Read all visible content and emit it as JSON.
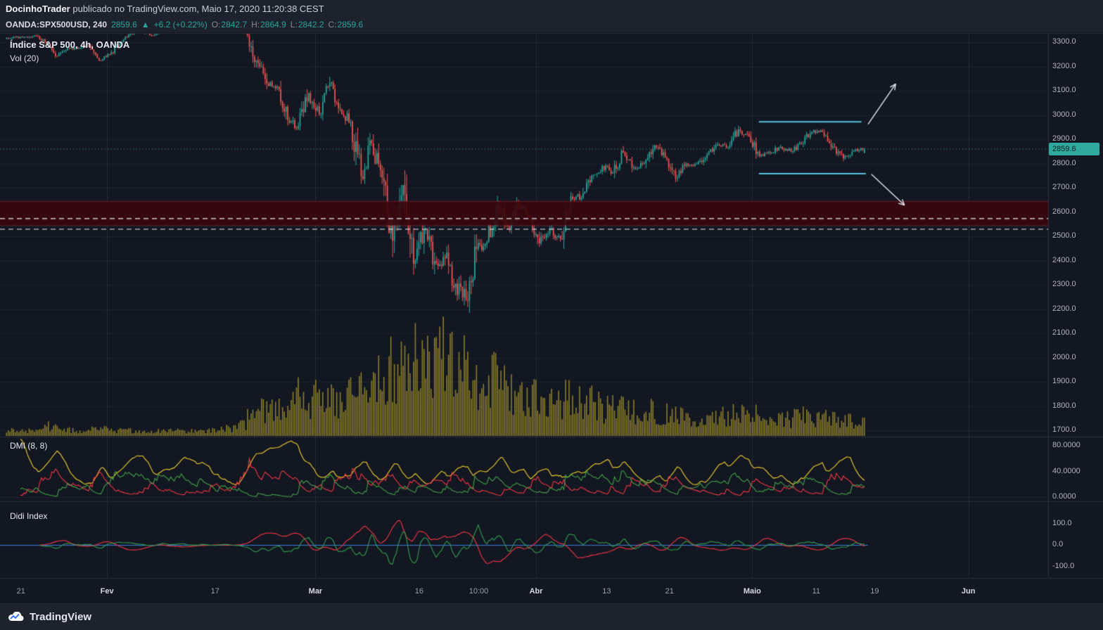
{
  "attribution": {
    "author": "DocinhoTrader",
    "text": " publicado no TradingView.com, Maio 17, 2020 11:20:38 CEST"
  },
  "header": {
    "symbol": "OANDA:SPX500USD, 240",
    "last": "2859.6",
    "direction": "▲",
    "change": "+6.2 (+0.22%)",
    "ohlc": [
      {
        "label": "O:",
        "value": "2842.7"
      },
      {
        "label": "H:",
        "value": "2864.9"
      },
      {
        "label": "L:",
        "value": "2842.2"
      },
      {
        "label": "C:",
        "value": "2859.6"
      }
    ]
  },
  "legends": {
    "main": "Índice S&P 500, 4h, OANDA",
    "volume": "Vol (20)",
    "dmi": "DMI (8, 8)",
    "didi": "Didi Index"
  },
  "footer": {
    "brand": "TradingView"
  },
  "price_axis": {
    "ticks": [
      "3300.0",
      "3200.0",
      "3100.0",
      "3000.0",
      "2900.0",
      "2800.0",
      "2700.0",
      "2600.0",
      "2500.0",
      "2400.0",
      "2300.0",
      "2200.0",
      "2100.0",
      "2000.0",
      "1900.0",
      "1800.0",
      "1700.0"
    ],
    "last_price_label": "2859.6"
  },
  "dmi_axis": [
    "80.0000",
    "40.0000",
    "0.0000"
  ],
  "didi_axis": [
    "100.0",
    "0.0",
    "-100.0"
  ],
  "time_axis": [
    {
      "label": "21",
      "x": 0.019,
      "strong": false
    },
    {
      "label": "Fev",
      "x": 0.097,
      "strong": true
    },
    {
      "label": "17",
      "x": 0.195,
      "strong": false
    },
    {
      "label": "Mar",
      "x": 0.286,
      "strong": true
    },
    {
      "label": "16",
      "x": 0.38,
      "strong": false
    },
    {
      "label": "10:00",
      "x": 0.434,
      "strong": false
    },
    {
      "label": "Abr",
      "x": 0.486,
      "strong": true
    },
    {
      "label": "13",
      "x": 0.55,
      "strong": false
    },
    {
      "label": "21",
      "x": 0.607,
      "strong": false
    },
    {
      "label": "Maio",
      "x": 0.682,
      "strong": true
    },
    {
      "label": "11",
      "x": 0.74,
      "strong": false
    },
    {
      "label": "19",
      "x": 0.793,
      "strong": false
    },
    {
      "label": "Jun",
      "x": 0.878,
      "strong": true
    }
  ],
  "chart_data": {
    "type": "candlestick",
    "title": "Índice S&P 500, 4h, OANDA",
    "symbol": "OANDA:SPX500USD",
    "interval_minutes": 240,
    "ylim": [
      1677,
      3335
    ],
    "grid": true,
    "price_ticks": [
      3300,
      3200,
      3100,
      3000,
      2900,
      2800,
      2700,
      2600,
      2500,
      2400,
      2300,
      2200,
      2100,
      2000,
      1900,
      1800,
      1700
    ],
    "x_tick_labels": [
      "21",
      "Fev",
      "17",
      "Mar",
      "16",
      "10:00",
      "Abr",
      "13",
      "21",
      "Maio",
      "11",
      "19",
      "Jun"
    ],
    "last_price": 2859.6,
    "last_candle": {
      "open": 2842.7,
      "high": 2864.9,
      "low": 2842.2,
      "close": 2859.6
    },
    "candles_per_day": 6,
    "dmi_period": 8,
    "daily_closes": [
      3320,
      3322,
      3326,
      3295,
      3243,
      3276,
      3273,
      3284,
      3225,
      3249,
      3298,
      3334,
      3346,
      3328,
      3352,
      3358,
      3379,
      3374,
      3380,
      3370,
      3386,
      3373,
      3338,
      3226,
      3128,
      3116,
      2979,
      2954,
      3090,
      3003,
      3130,
      3024,
      2972,
      2747,
      2883,
      2741,
      2481,
      2711,
      2386,
      2529,
      2398,
      2409,
      2305,
      2237,
      2447,
      2476,
      2630,
      2541,
      2626,
      2585,
      2471,
      2527,
      2489,
      2664,
      2659,
      2750,
      2790,
      2762,
      2846,
      2784,
      2800,
      2875,
      2824,
      2737,
      2800,
      2798,
      2837,
      2878,
      2864,
      2940,
      2912,
      2831,
      2843,
      2869,
      2849,
      2882,
      2930,
      2931,
      2870,
      2821,
      2853,
      2864
    ],
    "daily_volume_rel": [
      0.07,
      0.06,
      0.06,
      0.09,
      0.12,
      0.08,
      0.07,
      0.07,
      0.1,
      0.08,
      0.07,
      0.07,
      0.06,
      0.06,
      0.06,
      0.06,
      0.06,
      0.06,
      0.06,
      0.07,
      0.08,
      0.09,
      0.13,
      0.26,
      0.3,
      0.32,
      0.4,
      0.47,
      0.44,
      0.46,
      0.42,
      0.44,
      0.5,
      0.62,
      0.56,
      0.66,
      0.82,
      0.76,
      0.88,
      0.96,
      0.86,
      1.0,
      0.9,
      0.94,
      0.72,
      0.66,
      0.76,
      0.62,
      0.56,
      0.52,
      0.46,
      0.42,
      0.38,
      0.45,
      0.4,
      0.42,
      0.38,
      0.33,
      0.34,
      0.3,
      0.28,
      0.3,
      0.26,
      0.28,
      0.25,
      0.24,
      0.26,
      0.22,
      0.24,
      0.26,
      0.28,
      0.26,
      0.22,
      0.2,
      0.2,
      0.22,
      0.24,
      0.2,
      0.22,
      0.2,
      0.18,
      0.16
    ],
    "overlays": {
      "supply_zone": {
        "top": 2645,
        "bottom": 2545,
        "fill": "rgba(58,7,13,0.9)",
        "edge": "rgba(158,42,52,0.55)"
      },
      "dashed_lines": [
        2573,
        2529
      ],
      "resistance_segment": {
        "price": 2972,
        "x_from": 0.688,
        "x_to": 0.781
      },
      "support_segment": {
        "price": 2758,
        "x_from": 0.688,
        "x_to": 0.785
      },
      "arrows": [
        {
          "dir": "up",
          "from_x": 0.787,
          "from_price": 2962,
          "to_x": 0.812,
          "to_price": 3128
        },
        {
          "dir": "down",
          "from_x": 0.79,
          "from_price": 2756,
          "to_x": 0.82,
          "to_price": 2628
        }
      ]
    },
    "indicators": [
      {
        "name": "Vol",
        "params": [
          20
        ],
        "color": "#8a7d2b"
      },
      {
        "name": "DMI",
        "params": [
          8,
          8
        ],
        "ticks": [
          80,
          40,
          0
        ],
        "tick_labels": [
          "80.0000",
          "40.0000",
          "0.0000"
        ]
      },
      {
        "name": "Didi Index",
        "params": [],
        "ticks": [
          100,
          0,
          -100
        ],
        "tick_labels": [
          "100.0",
          "0.0",
          "-100.0"
        ]
      }
    ],
    "colors": {
      "bg": "#131722",
      "up": "#26a69a",
      "down": "#ef5350",
      "volume": "#8a7d2b",
      "grid": "rgba(151,155,165,0.08)",
      "grid_strong": "rgba(151,155,165,0.14)",
      "separator": "#2a2e39",
      "axis_text": "#b2b5be",
      "last_line": "rgba(83,176,168,0.6)",
      "dashed": "#eceff4",
      "cyan": "#55c2de",
      "arrow": "#e2e6ed",
      "adx": "#f0cf2a",
      "di_plus": "#43a047",
      "di_minus": "#f23645",
      "didi_fast": "#2f9e4f",
      "didi_slow": "#f23645",
      "didi_zero": "#3b7bd6"
    }
  }
}
